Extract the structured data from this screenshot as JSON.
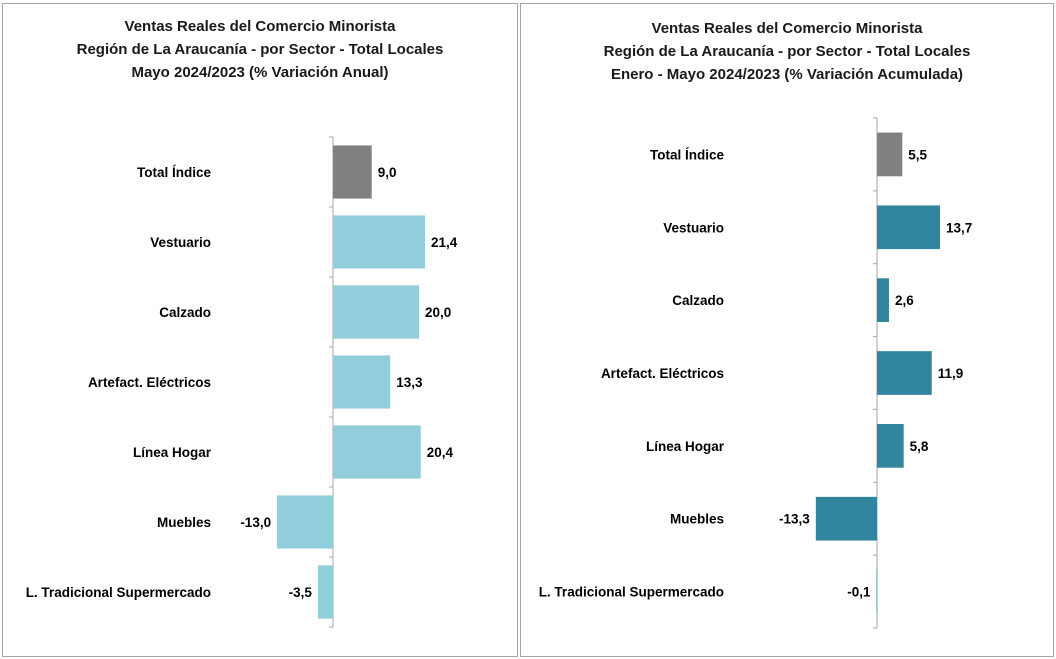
{
  "chart_data": [
    {
      "type": "bar",
      "orientation": "horizontal",
      "title": [
        "Ventas Reales del Comercio Minorista",
        "Región de La Araucanía - por Sector - Total Locales",
        "Mayo 2024/2023 (% Variación Anual)"
      ],
      "categories": [
        "Total Índice",
        "Vestuario",
        "Calzado",
        "Artefact. Eléctricos",
        "Línea Hogar",
        "Muebles",
        "L. Tradicional Supermercado"
      ],
      "values": [
        9.0,
        21.4,
        20.0,
        13.3,
        20.4,
        -13.0,
        -3.5
      ],
      "value_labels": [
        "9,0",
        "21,4",
        "20,0",
        "13,3",
        "20,4",
        "-13,0",
        "-3,5"
      ],
      "colors": [
        "#808080",
        "#92cddc",
        "#92cddc",
        "#92cddc",
        "#92cddc",
        "#92cddc",
        "#92cddc"
      ],
      "xlabel": "",
      "ylabel": "",
      "grid": false,
      "legend": "none"
    },
    {
      "type": "bar",
      "orientation": "horizontal",
      "title": [
        "Ventas Reales del Comercio Minorista",
        "Región de La Araucanía - por Sector - Total Locales",
        "Enero - Mayo 2024/2023 (% Variación Acumulada)"
      ],
      "categories": [
        "Total Índice",
        "Vestuario",
        "Calzado",
        "Artefact. Eléctricos",
        "Línea Hogar",
        "Muebles",
        "L. Tradicional Supermercado"
      ],
      "values": [
        5.5,
        13.7,
        2.6,
        11.9,
        5.8,
        -13.3,
        -0.1
      ],
      "value_labels": [
        "5,5",
        "13,7",
        "2,6",
        "11,9",
        "5,8",
        "-13,3",
        "-0,1"
      ],
      "colors": [
        "#808080",
        "#31859c",
        "#31859c",
        "#31859c",
        "#31859c",
        "#31859c",
        "#31859c"
      ],
      "xlabel": "",
      "ylabel": "",
      "grid": false,
      "legend": "none"
    }
  ]
}
